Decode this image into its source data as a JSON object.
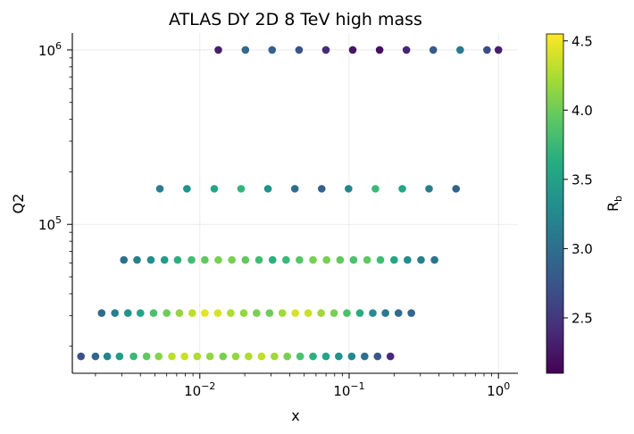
{
  "chart_data": {
    "type": "scatter",
    "title": "ATLAS DY 2D 8 TeV high mass",
    "xlabel": "x",
    "ylabel": "Q2",
    "xscale": "log",
    "yscale": "log",
    "xlim": [
      0.0014,
      1.35
    ],
    "ylim": [
      14000,
      1250000
    ],
    "grid": true,
    "x_ticks": [
      {
        "value": 0.01,
        "base": "10",
        "exp": "−2"
      },
      {
        "value": 0.1,
        "base": "10",
        "exp": "−1"
      },
      {
        "value": 1,
        "base": "10",
        "exp": "0"
      }
    ],
    "y_ticks": [
      {
        "value": 100000,
        "base": "10",
        "exp": "5"
      },
      {
        "value": 1000000,
        "base": "10",
        "exp": "6"
      }
    ],
    "colorbar": {
      "label_main": "R",
      "label_sub": "b",
      "min": 2.1,
      "max": 4.55,
      "ticks": [
        "2.5",
        "3.0",
        "3.5",
        "4.0",
        "4.5"
      ],
      "colormap": "viridis"
    },
    "series": [
      {
        "name": "Q2 = 1.0e6",
        "q2": 1000000,
        "x": [
          0.0133,
          0.0202,
          0.0305,
          0.0462,
          0.0699,
          0.1057,
          0.16,
          0.242,
          0.366,
          0.554,
          0.838,
          1.0
        ],
        "rb": [
          2.3,
          2.95,
          2.85,
          2.75,
          2.4,
          2.25,
          2.2,
          2.35,
          2.8,
          3.1,
          2.65,
          2.3
        ]
      },
      {
        "name": "Q2 = 1.6e5",
        "q2": 160000,
        "x": [
          0.0054,
          0.0082,
          0.0125,
          0.0189,
          0.0286,
          0.0433,
          0.0655,
          0.0991,
          0.15,
          0.227,
          0.343,
          0.52
        ],
        "rb": [
          3.15,
          3.35,
          3.55,
          3.7,
          3.35,
          2.95,
          2.85,
          3.2,
          3.75,
          3.55,
          3.15,
          2.85
        ]
      },
      {
        "name": "Q2 = 6.25e4",
        "q2": 62500,
        "x": [
          0.0031,
          0.0038,
          0.0047,
          0.0058,
          0.0071,
          0.0088,
          0.0108,
          0.0133,
          0.0164,
          0.0202,
          0.0249,
          0.0307,
          0.0378,
          0.0465,
          0.0573,
          0.0706,
          0.087,
          0.107,
          0.132,
          0.162,
          0.2,
          0.246,
          0.303,
          0.373
        ],
        "rb": [
          3.0,
          3.15,
          3.3,
          3.45,
          3.65,
          3.8,
          3.95,
          4.05,
          4.05,
          3.95,
          3.8,
          3.65,
          3.75,
          3.9,
          4.05,
          4.05,
          3.95,
          3.85,
          3.95,
          3.8,
          3.55,
          3.3,
          3.15,
          3.05
        ]
      },
      {
        "name": "Q2 = 3.1e4",
        "q2": 31000,
        "x": [
          0.0022,
          0.0027,
          0.0033,
          0.004,
          0.0049,
          0.006,
          0.0073,
          0.0089,
          0.0108,
          0.0132,
          0.0161,
          0.0197,
          0.024,
          0.0293,
          0.0357,
          0.0436,
          0.0532,
          0.0649,
          0.0792,
          0.0966,
          0.118,
          0.144,
          0.175,
          0.214,
          0.261
        ],
        "rb": [
          2.95,
          3.15,
          3.35,
          3.55,
          3.85,
          4.0,
          4.15,
          4.3,
          4.45,
          4.4,
          4.25,
          4.15,
          4.05,
          4.0,
          4.2,
          4.4,
          4.35,
          4.2,
          4.05,
          3.85,
          3.6,
          3.3,
          3.1,
          2.95,
          2.9
        ]
      },
      {
        "name": "Q2 = 1.75e4",
        "q2": 17500,
        "x": [
          0.0016,
          0.002,
          0.0024,
          0.0029,
          0.0036,
          0.0044,
          0.0053,
          0.0065,
          0.0079,
          0.0096,
          0.0117,
          0.0143,
          0.0174,
          0.0212,
          0.0259,
          0.0316,
          0.0385,
          0.047,
          0.0573,
          0.0699,
          0.0852,
          0.104,
          0.127,
          0.155,
          0.189
        ],
        "rb": [
          2.7,
          2.9,
          3.2,
          3.45,
          3.75,
          3.95,
          4.1,
          4.3,
          4.35,
          4.25,
          4.15,
          4.05,
          4.15,
          4.25,
          4.3,
          4.2,
          4.05,
          3.85,
          3.65,
          3.55,
          3.35,
          3.25,
          3.0,
          2.75,
          2.4
        ]
      }
    ]
  }
}
